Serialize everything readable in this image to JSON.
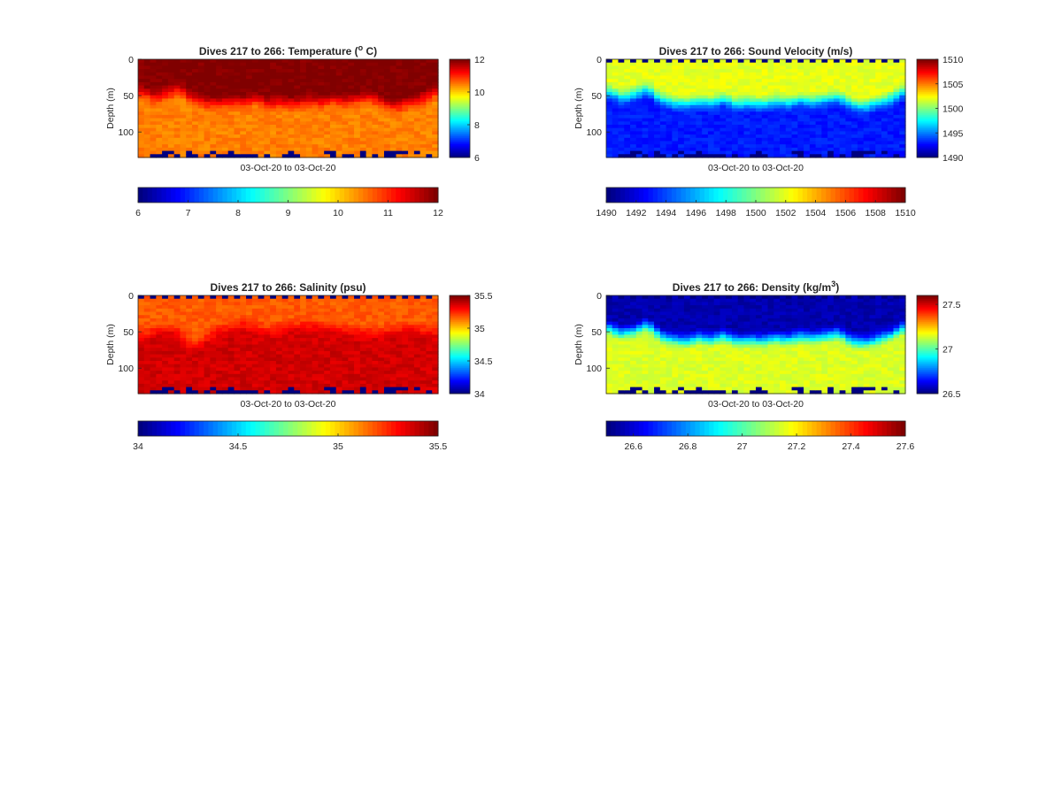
{
  "chart_data": [
    {
      "type": "heatmap",
      "title": "Dives 217 to 266: Temperature (° C)",
      "title_parts": {
        "pre": "Dives 217 to 266: Temperature (",
        "sup": "o",
        "post": " C)"
      },
      "xlabel": "03-Oct-20 to 03-Oct-20",
      "ylabel": "Depth (m)",
      "ylim": [
        0,
        135
      ],
      "yticks": [
        "0",
        "50",
        "100"
      ],
      "ytick_values": [
        0,
        50,
        100
      ],
      "color_range": [
        6,
        12
      ],
      "colorbar_ticks": [
        "6",
        "8",
        "10",
        "12"
      ],
      "colorbar_tick_values": [
        6,
        8,
        10,
        12
      ],
      "hcolorbar_ticks": [
        "6",
        "7",
        "8",
        "9",
        "10",
        "11",
        "12"
      ],
      "hcolorbar_tick_values": [
        6,
        7,
        8,
        9,
        10,
        11,
        12
      ],
      "colormap": "jet-red",
      "surface_value": 12,
      "deep_value": 10.5,
      "interface_depth": [
        45,
        52,
        48,
        40,
        55,
        60,
        62,
        58,
        60,
        55,
        62,
        60,
        62,
        58,
        60,
        56,
        58,
        55,
        52,
        62,
        65,
        60,
        55,
        45
      ],
      "grid": false
    },
    {
      "type": "heatmap",
      "title": "Dives 217 to 266: Sound Velocity (m/s)",
      "xlabel": "03-Oct-20 to 03-Oct-20",
      "ylabel": "Depth (m)",
      "ylim": [
        0,
        135
      ],
      "yticks": [
        "0",
        "50",
        "100"
      ],
      "ytick_values": [
        0,
        50,
        100
      ],
      "color_range": [
        1490,
        1510
      ],
      "colorbar_ticks": [
        "1490",
        "1495",
        "1500",
        "1505",
        "1510"
      ],
      "colorbar_tick_values": [
        1490,
        1495,
        1500,
        1505,
        1510
      ],
      "hcolorbar_ticks": [
        "1490",
        "1492",
        "1494",
        "1496",
        "1498",
        "1500",
        "1502",
        "1504",
        "1506",
        "1508",
        "1510"
      ],
      "hcolorbar_tick_values": [
        1490,
        1492,
        1494,
        1496,
        1498,
        1500,
        1502,
        1504,
        1506,
        1508,
        1510
      ],
      "colormap": "jet",
      "surface_value": 1502,
      "deep_value": 1493,
      "interface_depth": [
        45,
        52,
        48,
        40,
        55,
        60,
        62,
        58,
        60,
        55,
        62,
        60,
        62,
        58,
        60,
        56,
        58,
        55,
        52,
        62,
        65,
        60,
        55,
        45
      ],
      "grid": false
    },
    {
      "type": "heatmap",
      "title": "Dives 217 to 266: Salinity (psu)",
      "xlabel": "03-Oct-20 to 03-Oct-20",
      "ylabel": "Depth (m)",
      "ylim": [
        0,
        135
      ],
      "yticks": [
        "0",
        "50",
        "100"
      ],
      "ytick_values": [
        0,
        50,
        100
      ],
      "color_range": [
        34,
        35.5
      ],
      "colorbar_ticks": [
        "34",
        "34.5",
        "35",
        "35.5"
      ],
      "colorbar_tick_values": [
        34,
        34.5,
        35,
        35.5
      ],
      "hcolorbar_ticks": [
        "34",
        "34.5",
        "35",
        "35.5"
      ],
      "hcolorbar_tick_values": [
        34,
        34.5,
        35,
        35.5
      ],
      "colormap": "jet",
      "surface_value": 35.18,
      "deep_value": 35.38,
      "interface_depth": [
        55,
        50,
        45,
        50,
        70,
        60,
        48,
        45,
        40,
        45,
        48,
        45,
        42,
        40,
        42,
        45,
        48,
        50,
        52,
        50,
        48,
        45,
        48,
        50
      ],
      "grid": false
    },
    {
      "type": "heatmap",
      "title": "Dives 217 to 266: Density (kg/m³)",
      "title_parts": {
        "pre": "Dives 217 to 266: Density (kg/m",
        "sup": "3",
        "post": ")"
      },
      "xlabel": "03-Oct-20 to 03-Oct-20",
      "ylabel": "Depth (m)",
      "ylim": [
        0,
        135
      ],
      "yticks": [
        "0",
        "50",
        "100"
      ],
      "ytick_values": [
        0,
        50,
        100
      ],
      "color_range": [
        26.5,
        27.6
      ],
      "colorbar_ticks": [
        "26.5",
        "27",
        "27.5"
      ],
      "colorbar_tick_values": [
        26.5,
        27,
        27.5
      ],
      "hcolorbar_ticks": [
        "26.6",
        "26.8",
        "27",
        "27.2",
        "27.4",
        "27.6"
      ],
      "hcolorbar_tick_values": [
        26.6,
        26.8,
        27,
        27.2,
        27.4,
        27.6
      ],
      "colormap": "jet",
      "surface_value": 26.55,
      "deep_value": 27.15,
      "interface_depth": [
        45,
        52,
        48,
        40,
        55,
        60,
        62,
        58,
        60,
        55,
        62,
        60,
        62,
        58,
        60,
        56,
        58,
        55,
        52,
        62,
        65,
        60,
        55,
        45
      ],
      "grid": false
    }
  ]
}
